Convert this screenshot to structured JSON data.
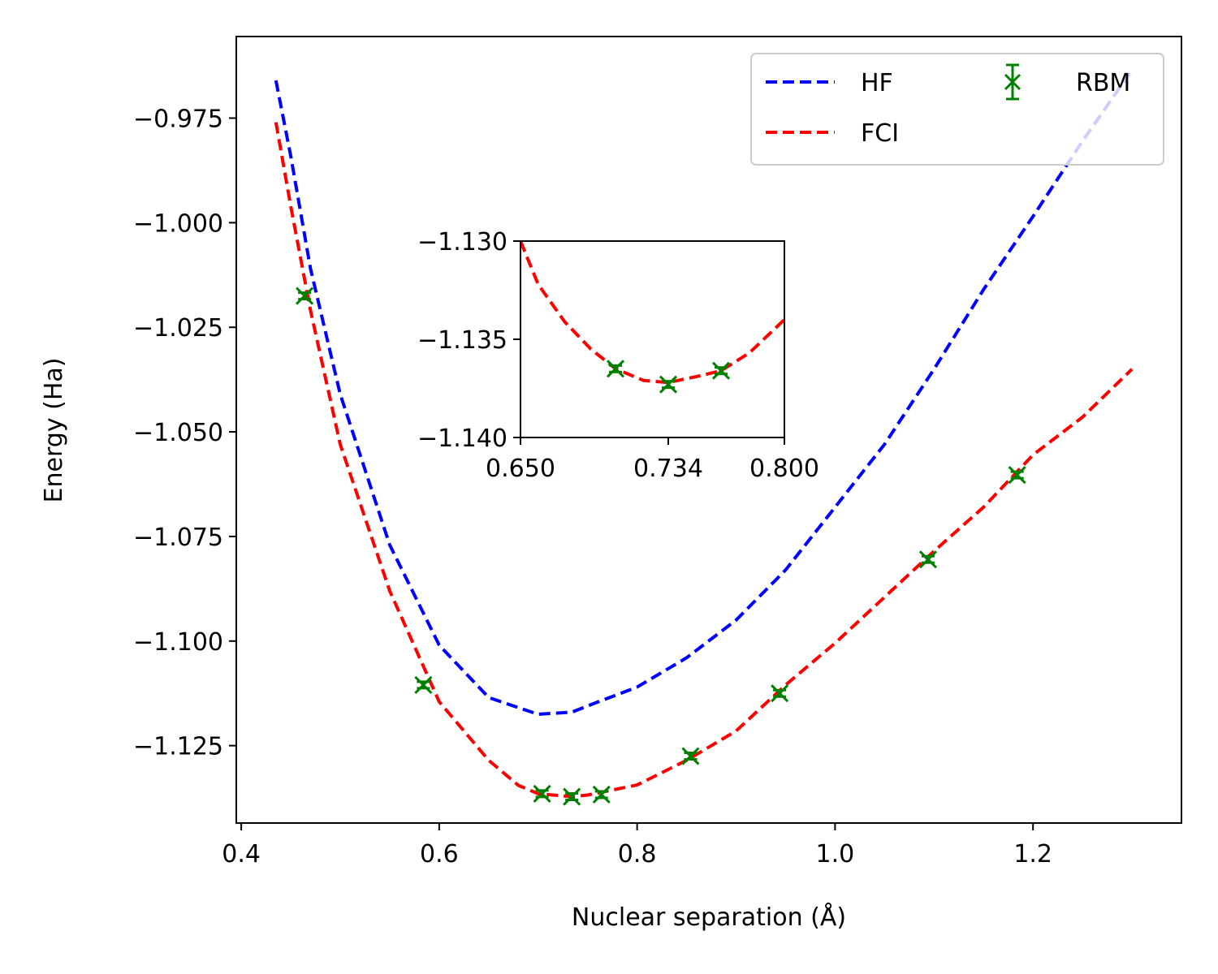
{
  "chart_data": [
    {
      "type": "line",
      "xlabel": "Nuclear separation (Å)",
      "ylabel": "Energy (Ha)",
      "xlim": [
        0.395,
        1.35
      ],
      "ylim": [
        -1.1435,
        -0.9555
      ],
      "xticks": [
        0.4,
        0.6,
        0.8,
        1.0,
        1.2
      ],
      "xtick_labels": [
        "0.4",
        "0.6",
        "0.8",
        "1.0",
        "1.2"
      ],
      "yticks": [
        -0.975,
        -1.0,
        -1.025,
        -1.05,
        -1.075,
        -1.1,
        -1.125
      ],
      "ytick_labels": [
        "−0.975",
        "−1.000",
        "−1.025",
        "−1.050",
        "−1.075",
        "−1.100",
        "−1.125"
      ],
      "grid": false,
      "legend": {
        "placement": "upper-right",
        "columns": 2
      },
      "series": [
        {
          "name": "HF",
          "style": "dashed",
          "color": "#0000ff",
          "x": [
            0.435,
            0.45,
            0.47,
            0.5,
            0.55,
            0.6,
            0.65,
            0.7,
            0.734,
            0.75,
            0.8,
            0.85,
            0.9,
            0.95,
            1.0,
            1.05,
            1.1,
            1.15,
            1.2,
            1.25,
            1.3
          ],
          "y": [
            -0.966,
            -0.984,
            -1.011,
            -1.041,
            -1.077,
            -1.101,
            -1.1135,
            -1.1175,
            -1.117,
            -1.1155,
            -1.111,
            -1.104,
            -1.095,
            -1.083,
            -1.068,
            -1.053,
            -1.035,
            -1.016,
            -0.9985,
            -0.9805,
            -0.9635
          ]
        },
        {
          "name": "FCI",
          "style": "dashed",
          "color": "#ff0000",
          "x": [
            0.435,
            0.45,
            0.47,
            0.5,
            0.55,
            0.6,
            0.65,
            0.68,
            0.7,
            0.734,
            0.75,
            0.8,
            0.85,
            0.9,
            0.95,
            1.0,
            1.05,
            1.1,
            1.15,
            1.2,
            1.25,
            1.3
          ],
          "y": [
            -0.976,
            -0.996,
            -1.021,
            -1.053,
            -1.088,
            -1.1145,
            -1.1285,
            -1.1345,
            -1.1365,
            -1.1372,
            -1.1368,
            -1.1344,
            -1.1285,
            -1.1215,
            -1.1105,
            -1.1005,
            -1.0895,
            -1.0785,
            -1.068,
            -1.0555,
            -1.0465,
            -1.035
          ]
        },
        {
          "name": "RBM",
          "style": "markers-x-errorbar",
          "color": "#008000",
          "x": [
            0.464,
            0.584,
            0.704,
            0.734,
            0.764,
            0.854,
            0.944,
            1.094,
            1.184
          ],
          "y": [
            -1.0175,
            -1.1105,
            -1.1365,
            -1.1372,
            -1.1367,
            -1.1275,
            -1.1125,
            -1.0805,
            -1.0603
          ]
        }
      ]
    },
    {
      "type": "line",
      "xlim": [
        0.65,
        0.8
      ],
      "ylim": [
        -1.14,
        -1.13
      ],
      "xticks": [
        0.65,
        0.734,
        0.8
      ],
      "xtick_labels": [
        "0.650",
        "0.734",
        "0.800"
      ],
      "yticks": [
        -1.13,
        -1.135,
        -1.14
      ],
      "ytick_labels": [
        "−1.130",
        "−1.135",
        "−1.140"
      ],
      "grid": false,
      "series": [
        {
          "name": "FCI",
          "style": "dashed",
          "color": "#ff0000",
          "x": [
            0.65,
            0.66,
            0.675,
            0.69,
            0.704,
            0.72,
            0.734,
            0.75,
            0.764,
            0.78,
            0.8
          ],
          "y": [
            -1.13,
            -1.1322,
            -1.1341,
            -1.1355,
            -1.1365,
            -1.1371,
            -1.1372,
            -1.1369,
            -1.1366,
            -1.1357,
            -1.134
          ]
        },
        {
          "name": "RBM",
          "style": "markers-x-errorbar",
          "color": "#008000",
          "x": [
            0.704,
            0.734,
            0.764
          ],
          "y": [
            -1.1365,
            -1.1373,
            -1.1366
          ]
        }
      ]
    }
  ],
  "legend": {
    "hf_label": "HF",
    "fci_label": "FCI",
    "rbm_label": "RBM"
  }
}
